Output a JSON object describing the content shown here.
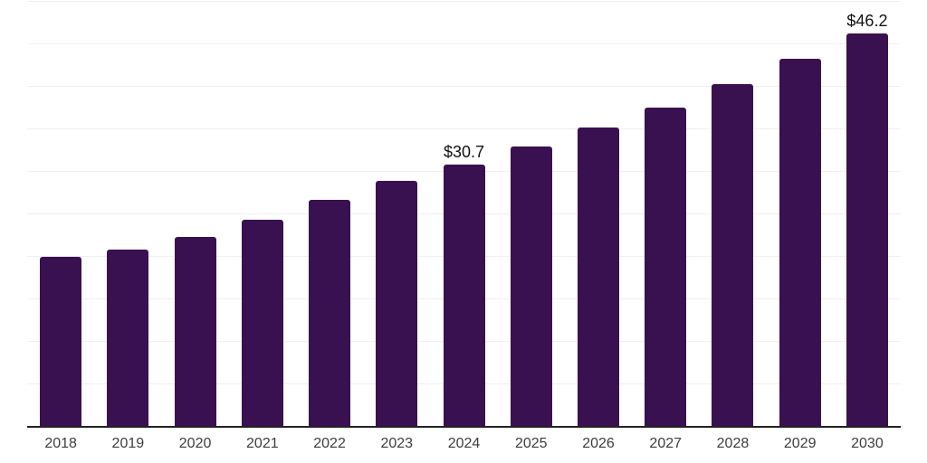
{
  "chart": {
    "bar_color": "#3a1150",
    "grid_color": "#f0eff2",
    "axis_color": "#222222",
    "tick_label_color": "#3d3d3d",
    "value_label_color": "#111111",
    "background_color": "#ffffff"
  },
  "chart_data": {
    "type": "bar",
    "title": "",
    "xlabel": "",
    "ylabel": "",
    "categories": [
      "2018",
      "2019",
      "2020",
      "2021",
      "2022",
      "2023",
      "2024",
      "2025",
      "2026",
      "2027",
      "2028",
      "2029",
      "2030"
    ],
    "values": [
      19.9,
      20.7,
      22.2,
      24.3,
      26.6,
      28.8,
      30.7,
      32.9,
      35.1,
      37.5,
      40.2,
      43.2,
      46.2
    ],
    "value_labels": [
      {
        "category": "2024",
        "text": "$30.7"
      },
      {
        "category": "2030",
        "text": "$46.2"
      }
    ],
    "ylim": [
      0,
      50
    ],
    "grid_step": 5,
    "grid": true,
    "y_tick_labels_shown": false,
    "legend": "none"
  }
}
